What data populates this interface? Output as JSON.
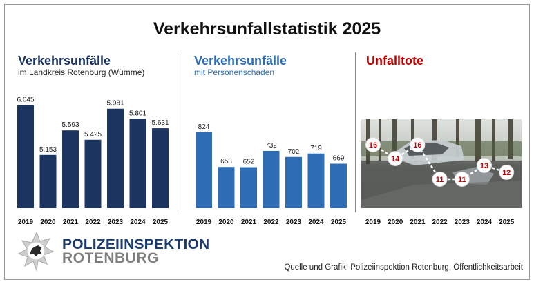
{
  "title": "Verkehrsunfallstatistik 2025",
  "panels": [
    {
      "title": "Verkehrsunfälle",
      "subtitle": "im Landkreis Rotenburg (Wümme)",
      "color": "#1c3560"
    },
    {
      "title": "Verkehrsunfälle",
      "subtitle": "mit Personenschaden",
      "color": "#2e6db4"
    },
    {
      "title": "Unfalltote",
      "subtitle": "",
      "color": "#c00000"
    }
  ],
  "chart_data": [
    {
      "type": "bar",
      "title": "Verkehrsunfälle",
      "subtitle": "im Landkreis Rotenburg (Wümme)",
      "categories": [
        "2019",
        "2020",
        "2021",
        "2022",
        "2023",
        "2024",
        "2025"
      ],
      "values": [
        6045,
        5153,
        5593,
        5425,
        5981,
        5801,
        5631
      ],
      "labels": [
        "6.045",
        "5.153",
        "5.593",
        "5.425",
        "5.981",
        "5.801",
        "5.631"
      ],
      "ylim": [
        4200,
        6200
      ],
      "color": "#1c3560"
    },
    {
      "type": "bar",
      "title": "Verkehrsunfälle",
      "subtitle": "mit Personenschaden",
      "categories": [
        "2019",
        "2020",
        "2021",
        "2022",
        "2023",
        "2024",
        "2025"
      ],
      "values": [
        824,
        653,
        652,
        732,
        702,
        719,
        669
      ],
      "labels": [
        "824",
        "653",
        "652",
        "732",
        "702",
        "719",
        "669"
      ],
      "ylim": [
        450,
        1000
      ],
      "color": "#2e6db4"
    },
    {
      "type": "line",
      "title": "Unfalltote",
      "categories": [
        "2019",
        "2020",
        "2021",
        "2022",
        "2023",
        "2024",
        "2025"
      ],
      "values": [
        16,
        14,
        16,
        11,
        11,
        13,
        12
      ],
      "labels": [
        "16",
        "14",
        "16",
        "11",
        "11",
        "13",
        "12"
      ],
      "ylim": [
        8,
        18
      ],
      "color": "#c00000"
    }
  ],
  "logo": {
    "line1": "POLIZEIINSPEKTION",
    "line2": "ROTENBURG"
  },
  "source": "Quelle und Grafik: Polizeiinspektion Rotenburg, Öffentlichkeitsarbeit"
}
